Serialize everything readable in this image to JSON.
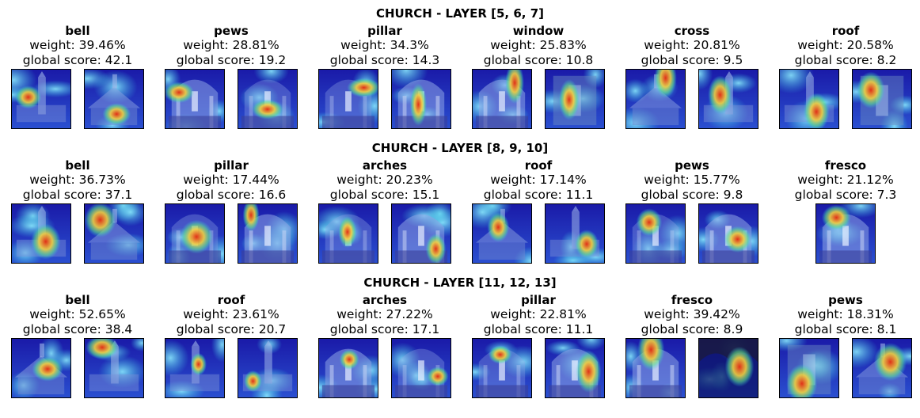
{
  "figure_rows": [
    {
      "title": "CHURCH - LAYER [5, 6, 7]",
      "concepts": [
        {
          "name": "bell",
          "weight": "weight: 39.46%",
          "score": "global score: 42.1",
          "thumbs": [
            {
              "scene": "tower"
            },
            {
              "scene": "building"
            }
          ]
        },
        {
          "name": "pews",
          "weight": "weight: 28.81%",
          "score": "global score: 19.2",
          "thumbs": [
            {
              "scene": "nave"
            },
            {
              "scene": "nave-dark"
            }
          ]
        },
        {
          "name": "pillar",
          "weight": "weight: 34.3%",
          "score": "global score: 14.3",
          "thumbs": [
            {
              "scene": "nave-dark"
            },
            {
              "scene": "nave"
            }
          ]
        },
        {
          "name": "window",
          "weight": "weight: 25.83%",
          "score": "global score: 10.8",
          "thumbs": [
            {
              "scene": "nave"
            },
            {
              "scene": "facade"
            }
          ]
        },
        {
          "name": "cross",
          "weight": "weight: 20.81%",
          "score": "global score: 9.5",
          "thumbs": [
            {
              "scene": "building"
            },
            {
              "scene": "tower"
            }
          ]
        },
        {
          "name": "roof",
          "weight": "weight: 20.58%",
          "score": "global score: 8.2",
          "thumbs": [
            {
              "scene": "tower"
            },
            {
              "scene": "facade"
            }
          ]
        }
      ]
    },
    {
      "title": "CHURCH - LAYER [8, 9, 10]",
      "concepts": [
        {
          "name": "bell",
          "weight": "weight: 36.73%",
          "score": "global score: 37.1",
          "thumbs": [
            {
              "scene": "tower"
            },
            {
              "scene": "building"
            }
          ]
        },
        {
          "name": "pillar",
          "weight": "weight: 17.44%",
          "score": "global score: 16.6",
          "thumbs": [
            {
              "scene": "nave-dark"
            },
            {
              "scene": "nave"
            }
          ]
        },
        {
          "name": "arches",
          "weight": "weight: 20.23%",
          "score": "global score: 15.1",
          "thumbs": [
            {
              "scene": "nave-dark"
            },
            {
              "scene": "nave"
            }
          ]
        },
        {
          "name": "roof",
          "weight": "weight: 17.14%",
          "score": "global score: 11.1",
          "thumbs": [
            {
              "scene": "building"
            },
            {
              "scene": "tower"
            }
          ]
        },
        {
          "name": "pews",
          "weight": "weight: 15.77%",
          "score": "global score: 9.8",
          "thumbs": [
            {
              "scene": "nave-dark"
            },
            {
              "scene": "nave"
            }
          ]
        },
        {
          "name": "fresco",
          "weight": "weight: 21.12%",
          "score": "global score: 7.3",
          "thumbs": [
            {
              "scene": "nave"
            }
          ]
        }
      ]
    },
    {
      "title": "CHURCH - LAYER [11, 12, 13]",
      "concepts": [
        {
          "name": "bell",
          "weight": "weight: 52.65%",
          "score": "global score: 38.4",
          "thumbs": [
            {
              "scene": "building"
            },
            {
              "scene": "tower"
            }
          ]
        },
        {
          "name": "roof",
          "weight": "weight: 23.61%",
          "score": "global score: 20.7",
          "thumbs": [
            {
              "scene": "tower"
            },
            {
              "scene": "tower"
            }
          ]
        },
        {
          "name": "arches",
          "weight": "weight: 27.22%",
          "score": "global score: 17.1",
          "thumbs": [
            {
              "scene": "nave"
            },
            {
              "scene": "nave-dark"
            }
          ]
        },
        {
          "name": "pillar",
          "weight": "weight: 22.81%",
          "score": "global score: 11.1",
          "thumbs": [
            {
              "scene": "nave-dark"
            },
            {
              "scene": "nave"
            }
          ]
        },
        {
          "name": "fresco",
          "weight": "weight: 39.42%",
          "score": "global score: 8.9",
          "thumbs": [
            {
              "scene": "nave"
            },
            {
              "scene": "night"
            }
          ]
        },
        {
          "name": "pews",
          "weight": "weight: 18.31%",
          "score": "global score: 8.1",
          "thumbs": [
            {
              "scene": "facade"
            },
            {
              "scene": "building"
            }
          ]
        }
      ]
    }
  ],
  "colors": {
    "heat_low": "#1a1aa8",
    "heat_mid": "#35c8e0",
    "heat_hot": "#e03018",
    "heat_warm": "#f0d040"
  }
}
